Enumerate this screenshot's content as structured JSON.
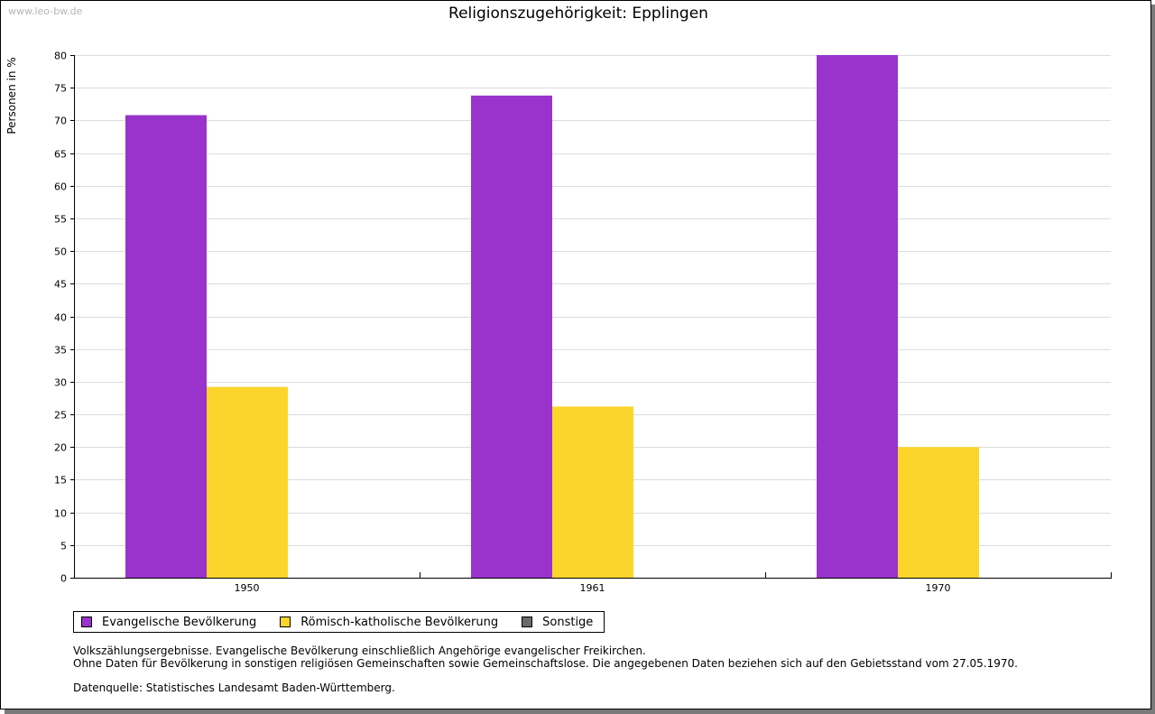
{
  "watermark": "www.leo-bw.de",
  "chart_data": {
    "type": "bar",
    "title": "Religionszugehörigkeit: Epplingen",
    "ylabel": "Personen in %",
    "xlabel": "",
    "ylim": [
      0,
      80
    ],
    "yticks": [
      0,
      5,
      10,
      15,
      20,
      25,
      30,
      35,
      40,
      45,
      50,
      55,
      60,
      65,
      70,
      75,
      80
    ],
    "categories": [
      "1950",
      "1961",
      "1970"
    ],
    "series": [
      {
        "name": "Evangelische Bevölkerung",
        "color": "#9933cc",
        "values": [
          70.8,
          73.8,
          80.0
        ]
      },
      {
        "name": "Römisch-katholische Bevölkerung",
        "color": "#fcd52c",
        "values": [
          29.2,
          26.2,
          20.0
        ]
      },
      {
        "name": "Sonstige",
        "color": "#6b6b6b",
        "values": [
          0,
          0,
          0
        ]
      }
    ],
    "grid": true,
    "legend": "bottom-left"
  },
  "notes": {
    "line1": "Volkszählungsergebnisse. Evangelische Bevölkerung einschließlich Angehörige evangelischer Freikirchen.",
    "line2": "Ohne Daten für Bevölkerung in sonstigen religiösen Gemeinschaften sowie Gemeinschaftslose. Die angegebenen Daten beziehen sich auf den Gebietsstand vom 27.05.1970.",
    "source": "Datenquelle: Statistisches Landesamt Baden-Württemberg."
  }
}
